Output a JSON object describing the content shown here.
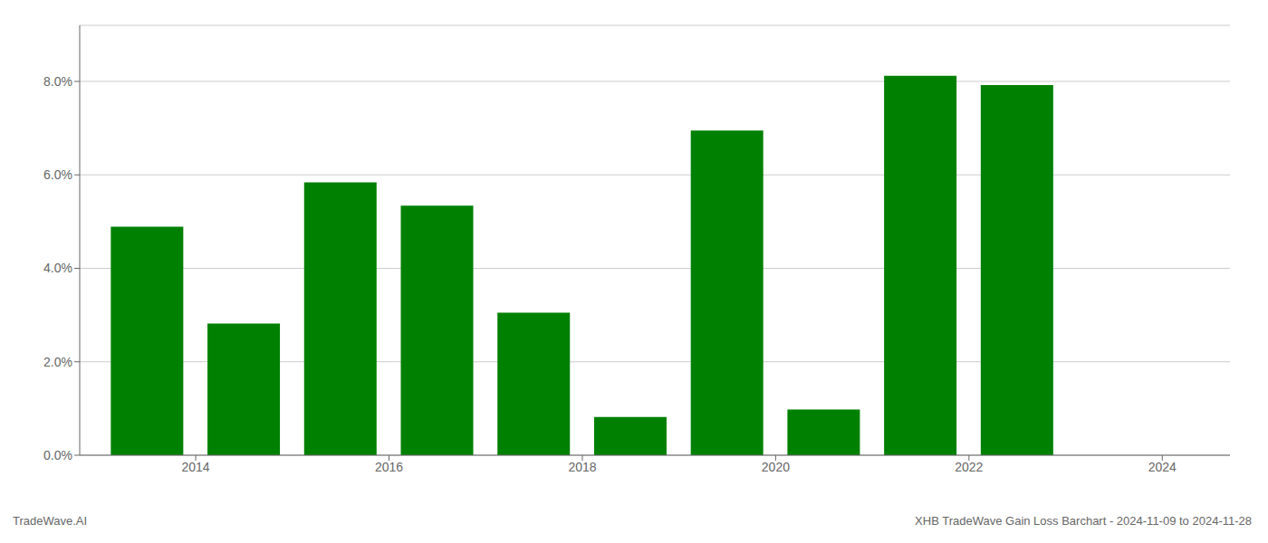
{
  "chart_data": {
    "type": "bar",
    "x": [
      2014,
      2015,
      2016,
      2017,
      2018,
      2019,
      2020,
      2021,
      2022,
      2023
    ],
    "values": [
      0.0489,
      0.0282,
      0.0584,
      0.0534,
      0.0305,
      0.0082,
      0.0695,
      0.0098,
      0.0812,
      0.0792
    ],
    "color": "#008000",
    "xlim": [
      2013.3,
      2025.2
    ],
    "xticks": [
      {
        "value": 2014.5,
        "label": "2014"
      },
      {
        "value": 2016.5,
        "label": "2016"
      },
      {
        "value": 2018.5,
        "label": "2018"
      },
      {
        "value": 2020.5,
        "label": "2020"
      },
      {
        "value": 2022.5,
        "label": "2022"
      },
      {
        "value": 2024.5,
        "label": "2024"
      }
    ],
    "ylim": [
      0,
      0.092
    ],
    "yticks": [
      {
        "value": 0.0,
        "label": "0.0%"
      },
      {
        "value": 0.02,
        "label": "2.0%"
      },
      {
        "value": 0.04,
        "label": "4.0%"
      },
      {
        "value": 0.06,
        "label": "6.0%"
      },
      {
        "value": 0.08,
        "label": "8.0%"
      }
    ],
    "grid": true,
    "annotations": [
      "TradeWave.AI",
      "XHB TradeWave Gain Loss Barchart - 2024-11-09 to 2024-11-28"
    ]
  }
}
